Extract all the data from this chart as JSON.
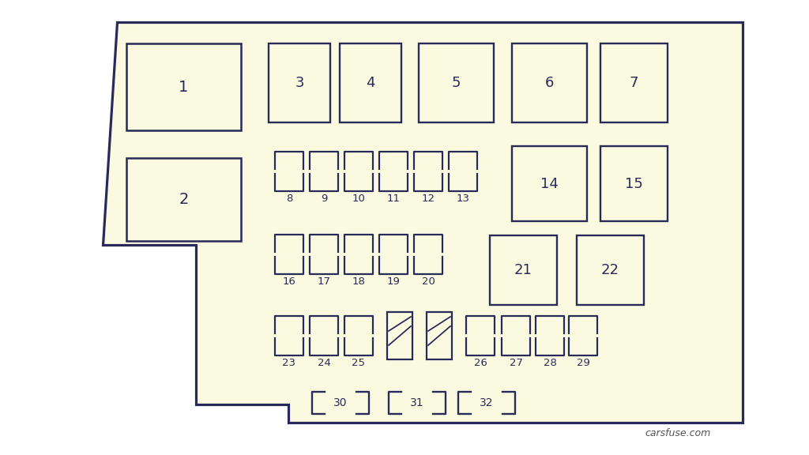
{
  "bg_color": "#fafae0",
  "outer_bg": "#ffffff",
  "line_color": "#2a2a5a",
  "lw": 1.8,
  "fig_w": 10.24,
  "fig_h": 5.76,
  "watermark": "carsfuse.com"
}
